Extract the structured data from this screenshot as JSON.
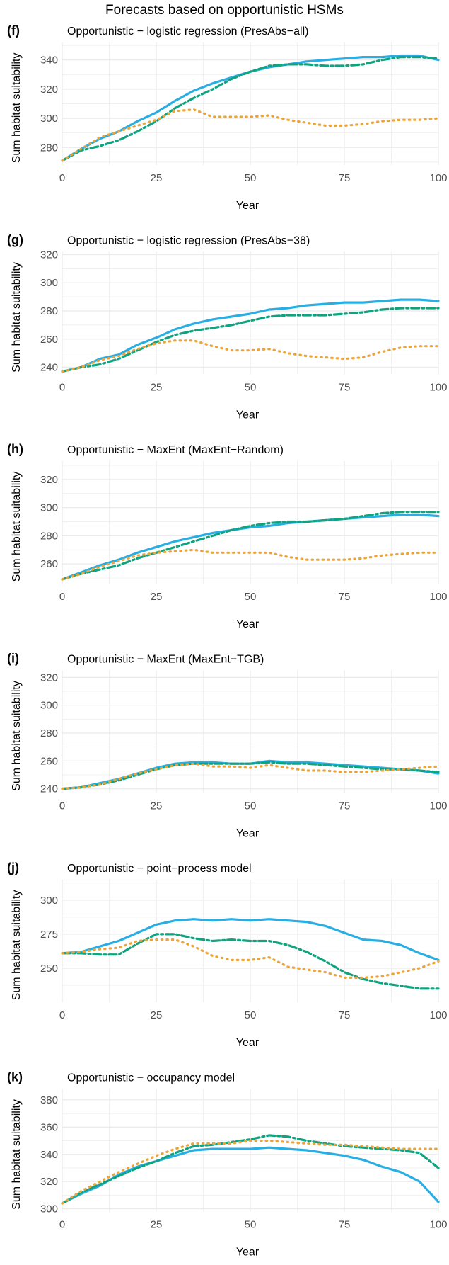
{
  "figure_title": "Forecasts based on opportunistic HSMs",
  "colors": {
    "blue": "#29aee3",
    "green": "#10a37f",
    "orange": "#eaa43a",
    "grid": "#ebebeb"
  },
  "chart_data": [
    {
      "letter": "(f)",
      "title": "Opportunistic − logistic regression (PresAbs−all)",
      "type": "line",
      "xlabel": "Year",
      "ylabel": "Sum habitat suitability",
      "xlim": [
        0,
        100
      ],
      "ylim": [
        268,
        352
      ],
      "xticks": [
        0,
        25,
        50,
        75,
        100
      ],
      "yticks": [
        280,
        300,
        320,
        340
      ],
      "x": [
        0,
        5,
        10,
        15,
        20,
        25,
        30,
        35,
        40,
        45,
        50,
        55,
        60,
        65,
        70,
        75,
        80,
        85,
        90,
        95,
        100
      ],
      "series": [
        {
          "style": "solid",
          "color": "#29aee3",
          "values": [
            271,
            279,
            286,
            291,
            298,
            304,
            312,
            319,
            324,
            328,
            332,
            335,
            337,
            339,
            340,
            341,
            342,
            342,
            343,
            343,
            340
          ]
        },
        {
          "style": "dashdot",
          "color": "#10a37f",
          "values": [
            271,
            278,
            281,
            285,
            291,
            298,
            307,
            314,
            320,
            327,
            332,
            336,
            337,
            337,
            336,
            336,
            337,
            340,
            342,
            342,
            341
          ]
        },
        {
          "style": "dotted",
          "color": "#eaa43a",
          "values": [
            271,
            279,
            287,
            291,
            295,
            299,
            305,
            306,
            301,
            301,
            301,
            302,
            299,
            297,
            295,
            295,
            296,
            298,
            299,
            299,
            300
          ]
        }
      ]
    },
    {
      "letter": "(g)",
      "title": "Opportunistic − logistic regression (PresAbs−38)",
      "type": "line",
      "xlabel": "Year",
      "ylabel": "Sum habitat suitability",
      "xlim": [
        0,
        100
      ],
      "ylim": [
        235,
        322
      ],
      "xticks": [
        0,
        25,
        50,
        75,
        100
      ],
      "yticks": [
        240,
        260,
        280,
        300,
        320
      ],
      "x": [
        0,
        5,
        10,
        15,
        20,
        25,
        30,
        35,
        40,
        45,
        50,
        55,
        60,
        65,
        70,
        75,
        80,
        85,
        90,
        95,
        100
      ],
      "series": [
        {
          "style": "solid",
          "color": "#29aee3",
          "values": [
            237,
            240,
            246,
            249,
            256,
            261,
            267,
            271,
            274,
            276,
            278,
            281,
            282,
            284,
            285,
            286,
            286,
            287,
            288,
            288,
            287
          ]
        },
        {
          "style": "dashdot",
          "color": "#10a37f",
          "values": [
            237,
            240,
            242,
            246,
            252,
            258,
            263,
            266,
            268,
            270,
            273,
            276,
            277,
            277,
            277,
            278,
            279,
            281,
            282,
            282,
            282
          ]
        },
        {
          "style": "dotted",
          "color": "#eaa43a",
          "values": [
            237,
            240,
            245,
            248,
            253,
            257,
            259,
            259,
            255,
            252,
            252,
            253,
            250,
            248,
            247,
            246,
            247,
            251,
            254,
            255,
            255
          ]
        }
      ]
    },
    {
      "letter": "(h)",
      "title": "Opportunistic − MaxEnt (MaxEnt−Random)",
      "type": "line",
      "xlabel": "Year",
      "ylabel": "Sum habitat suitability",
      "xlim": [
        0,
        100
      ],
      "ylim": [
        246,
        333
      ],
      "xticks": [
        0,
        25,
        50,
        75,
        100
      ],
      "yticks": [
        260,
        280,
        300,
        320
      ],
      "x": [
        0,
        5,
        10,
        15,
        20,
        25,
        30,
        35,
        40,
        45,
        50,
        55,
        60,
        65,
        70,
        75,
        80,
        85,
        90,
        95,
        100
      ],
      "series": [
        {
          "style": "solid",
          "color": "#29aee3",
          "values": [
            249,
            254,
            259,
            263,
            268,
            272,
            276,
            279,
            282,
            284,
            286,
            287,
            289,
            290,
            291,
            292,
            293,
            294,
            295,
            295,
            294
          ]
        },
        {
          "style": "dashdot",
          "color": "#10a37f",
          "values": [
            249,
            253,
            256,
            259,
            264,
            268,
            272,
            276,
            280,
            284,
            287,
            289,
            290,
            290,
            291,
            292,
            294,
            296,
            297,
            297,
            297
          ]
        },
        {
          "style": "dotted",
          "color": "#eaa43a",
          "values": [
            249,
            253,
            258,
            262,
            266,
            268,
            269,
            270,
            268,
            268,
            268,
            268,
            265,
            263,
            263,
            263,
            264,
            266,
            267,
            268,
            268
          ]
        }
      ]
    },
    {
      "letter": "(i)",
      "title": "Opportunistic − MaxEnt (MaxEnt−TGB)",
      "type": "line",
      "xlabel": "Year",
      "ylabel": "Sum habitat suitability",
      "xlim": [
        0,
        100
      ],
      "ylim": [
        237,
        325
      ],
      "xticks": [
        0,
        25,
        50,
        75,
        100
      ],
      "yticks": [
        240,
        260,
        280,
        300,
        320
      ],
      "x": [
        0,
        5,
        10,
        15,
        20,
        25,
        30,
        35,
        40,
        45,
        50,
        55,
        60,
        65,
        70,
        75,
        80,
        85,
        90,
        95,
        100
      ],
      "series": [
        {
          "style": "solid",
          "color": "#29aee3",
          "values": [
            240,
            241,
            244,
            247,
            251,
            255,
            258,
            259,
            259,
            258,
            258,
            260,
            259,
            259,
            258,
            257,
            256,
            255,
            254,
            253,
            251
          ]
        },
        {
          "style": "dashdot",
          "color": "#10a37f",
          "values": [
            240,
            241,
            243,
            246,
            250,
            254,
            257,
            258,
            258,
            258,
            258,
            259,
            258,
            258,
            257,
            256,
            255,
            254,
            254,
            253,
            252
          ]
        },
        {
          "style": "dotted",
          "color": "#eaa43a",
          "values": [
            240,
            241,
            243,
            247,
            251,
            254,
            257,
            258,
            256,
            256,
            255,
            257,
            255,
            253,
            253,
            252,
            252,
            253,
            254,
            255,
            256
          ]
        }
      ]
    },
    {
      "letter": "(j)",
      "title": "Opportunistic − point−process model",
      "type": "line",
      "xlabel": "Year",
      "ylabel": "Sum habitat suitability",
      "xlim": [
        0,
        100
      ],
      "ylim": [
        225,
        315
      ],
      "xticks": [
        0,
        25,
        50,
        75,
        100
      ],
      "yticks": [
        250,
        275,
        300
      ],
      "x": [
        0,
        5,
        10,
        15,
        20,
        25,
        30,
        35,
        40,
        45,
        50,
        55,
        60,
        65,
        70,
        75,
        80,
        85,
        90,
        95,
        100
      ],
      "series": [
        {
          "style": "solid",
          "color": "#29aee3",
          "values": [
            261,
            262,
            266,
            270,
            276,
            282,
            285,
            286,
            285,
            286,
            285,
            286,
            285,
            284,
            281,
            276,
            271,
            270,
            267,
            261,
            256
          ]
        },
        {
          "style": "dashdot",
          "color": "#10a37f",
          "values": [
            261,
            261,
            260,
            260,
            268,
            275,
            275,
            272,
            270,
            271,
            270,
            270,
            267,
            262,
            255,
            247,
            242,
            239,
            237,
            235,
            235
          ]
        },
        {
          "style": "dotted",
          "color": "#eaa43a",
          "values": [
            261,
            262,
            264,
            265,
            270,
            271,
            271,
            266,
            259,
            256,
            256,
            258,
            251,
            249,
            247,
            243,
            243,
            244,
            247,
            250,
            255
          ]
        }
      ]
    },
    {
      "letter": "(k)",
      "title": "Opportunistic − occupancy model",
      "type": "line",
      "xlabel": "Year",
      "ylabel": "Sum habitat suitability",
      "xlim": [
        0,
        100
      ],
      "ylim": [
        298,
        388
      ],
      "xticks": [
        0,
        25,
        50,
        75,
        100
      ],
      "yticks": [
        300,
        320,
        340,
        360,
        380
      ],
      "x": [
        0,
        5,
        10,
        15,
        20,
        25,
        30,
        35,
        40,
        45,
        50,
        55,
        60,
        65,
        70,
        75,
        80,
        85,
        90,
        95,
        100
      ],
      "series": [
        {
          "style": "solid",
          "color": "#29aee3",
          "values": [
            304,
            311,
            317,
            325,
            331,
            335,
            339,
            343,
            344,
            344,
            344,
            345,
            344,
            343,
            341,
            339,
            336,
            331,
            327,
            320,
            305
          ]
        },
        {
          "style": "dashdot",
          "color": "#10a37f",
          "values": [
            304,
            312,
            318,
            324,
            330,
            335,
            341,
            346,
            347,
            349,
            351,
            354,
            353,
            350,
            348,
            346,
            345,
            344,
            343,
            341,
            330
          ]
        },
        {
          "style": "dotted",
          "color": "#eaa43a",
          "values": [
            304,
            313,
            320,
            327,
            333,
            339,
            344,
            348,
            348,
            348,
            350,
            350,
            349,
            348,
            347,
            347,
            346,
            345,
            344,
            344,
            344
          ]
        }
      ]
    }
  ]
}
